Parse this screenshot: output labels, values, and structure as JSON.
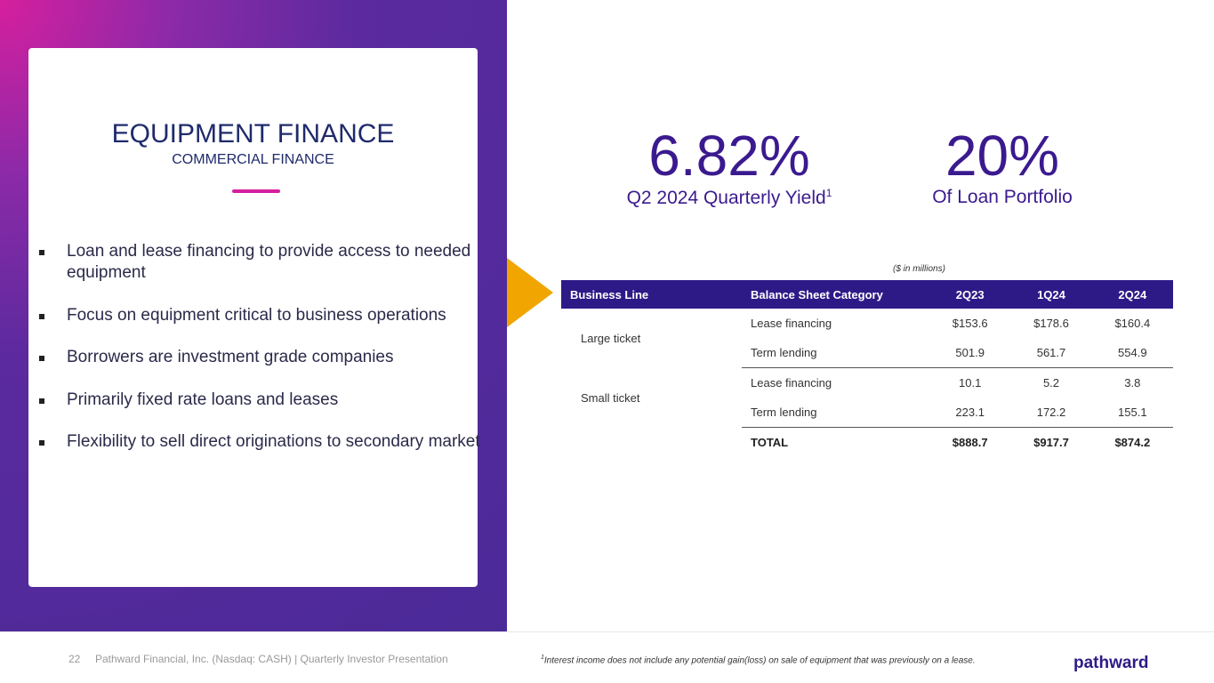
{
  "header": {
    "title": "EQUIPMENT FINANCE",
    "subtitle": "COMMERCIAL FINANCE"
  },
  "bullets": [
    "Loan and lease financing to provide access to needed equipment",
    "Focus on equipment critical to business operations",
    "Borrowers are investment grade companies",
    "Primarily fixed rate loans and leases",
    "Flexibility to sell direct originations to secondary market"
  ],
  "stats": [
    {
      "value": "6.82%",
      "label": "Q2 2024 Quarterly Yield",
      "sup": "1"
    },
    {
      "value": "20%",
      "label": "Of Loan Portfolio"
    }
  ],
  "table": {
    "note": "($ in millions)",
    "header": [
      "Business Line",
      "Balance Sheet Category",
      "2Q23",
      "1Q24",
      "2Q24"
    ],
    "groups": [
      {
        "business_line": "Large ticket",
        "rows": [
          [
            "Lease financing",
            "$153.6",
            "$178.6",
            "$160.4"
          ],
          [
            "Term lending",
            "501.9",
            "561.7",
            "554.9"
          ]
        ]
      },
      {
        "business_line": "Small ticket",
        "rows": [
          [
            "Lease financing",
            "10.1",
            "5.2",
            "3.8"
          ],
          [
            "Term lending",
            "223.1",
            "172.2",
            "155.1"
          ]
        ]
      }
    ],
    "total": [
      "TOTAL",
      "$888.7",
      "$917.7",
      "$874.2"
    ]
  },
  "footer": {
    "page": "22",
    "text": "Pathward Financial, Inc. (Nasdaq: CASH) | Quarterly Investor Presentation",
    "footnote_sup": "1",
    "footnote": "Interest income does not include any potential gain(loss) on sale of equipment that was previously on a lease.",
    "logo": "pathward"
  }
}
